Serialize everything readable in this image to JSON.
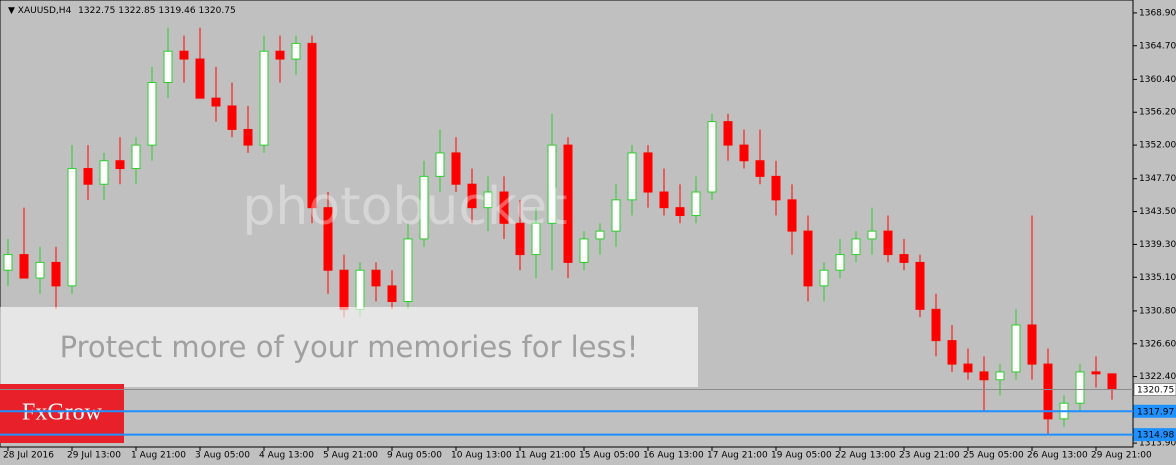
{
  "chart_data": {
    "type": "candlestick",
    "symbol": "XAUUSD,H4",
    "categories": [
      "28 Jul 2016",
      null,
      null,
      null,
      "29 Jul 13:00",
      null,
      null,
      null,
      "1 Aug 21:00",
      null,
      null,
      null,
      "3 Aug 05:00",
      null,
      null,
      null,
      "4 Aug 13:00",
      null,
      null,
      null,
      "5 Aug 21:00",
      null,
      null,
      null,
      "9 Aug 05:00",
      null,
      null,
      null,
      "10 Aug 13:00",
      null,
      null,
      null,
      "11 Aug 21:00",
      null,
      null,
      null,
      "15 Aug 05:00",
      null,
      null,
      null,
      "16 Aug 13:00",
      null,
      null,
      null,
      "17 Aug 21:00",
      null,
      null,
      null,
      "19 Aug 05:00",
      null,
      null,
      null,
      "22 Aug 13:00",
      null,
      null,
      null,
      "23 Aug 21:00",
      null,
      null,
      null,
      "25 Aug 05:00",
      null,
      null,
      null,
      "26 Aug 13:00",
      null,
      null,
      null,
      "29 Aug 21:00",
      null
    ],
    "open": [
      1336,
      1338,
      1335,
      1337,
      1334,
      1349,
      1347,
      1350,
      1349,
      1352,
      1360,
      1364,
      1363,
      1358,
      1357,
      1354,
      1352,
      1364,
      1363,
      1365,
      1344,
      1336,
      1331,
      1336,
      1334,
      1332,
      1340,
      1348,
      1351,
      1347,
      1344,
      1346,
      1342,
      1338,
      1342,
      1352,
      1337,
      1340,
      1341,
      1345,
      1351,
      1346,
      1344,
      1343,
      1346,
      1355,
      1352,
      1350,
      1348,
      1345,
      1341,
      1334,
      1336,
      1338,
      1340,
      1341,
      1338,
      1337,
      1331,
      1327,
      1324,
      1323,
      1322,
      1323,
      1329,
      1324,
      1317,
      1319,
      1323,
      1322.75
    ],
    "high": [
      1340,
      1344,
      1339,
      1339,
      1352,
      1352,
      1351,
      1353,
      1353,
      1362,
      1367,
      1366,
      1367,
      1362,
      1360,
      1357,
      1366,
      1366,
      1366,
      1366,
      1346,
      1338,
      1337,
      1337,
      1336,
      1342,
      1350,
      1354,
      1353,
      1349,
      1348,
      1348,
      1345,
      1344,
      1356,
      1353,
      1341,
      1342,
      1347,
      1352,
      1352,
      1349,
      1347,
      1348,
      1356,
      1356,
      1354,
      1354,
      1350,
      1347,
      1343,
      1337,
      1340,
      1341,
      1344,
      1343,
      1340,
      1338,
      1333,
      1329,
      1326,
      1325,
      1324,
      1331,
      1343,
      1326,
      1320,
      1324,
      1325,
      1322.85
    ],
    "low": [
      1334,
      1335,
      1333,
      1331,
      1333,
      1345,
      1345,
      1347,
      1347,
      1350,
      1358,
      1360,
      1358,
      1355,
      1353,
      1351,
      1351,
      1360,
      1361,
      1342,
      1333,
      1330,
      1330,
      1332,
      1331,
      1331,
      1339,
      1346,
      1346,
      1342,
      1341,
      1340,
      1336,
      1335,
      1336,
      1335,
      1336,
      1338,
      1339,
      1343,
      1344,
      1343,
      1342,
      1342,
      1345,
      1350,
      1349,
      1347,
      1343,
      1338,
      1332,
      1332,
      1335,
      1337,
      1338,
      1337,
      1336,
      1330,
      1325,
      1323,
      1322,
      1318,
      1320,
      1322,
      1322,
      1315,
      1316,
      1318,
      1321,
      1319.46
    ],
    "close": [
      1338,
      1335,
      1337,
      1334,
      1349,
      1347,
      1350,
      1349,
      1352,
      1360,
      1364,
      1363,
      1358,
      1357,
      1354,
      1352,
      1364,
      1363,
      1365,
      1344,
      1336,
      1331,
      1336,
      1334,
      1332,
      1340,
      1348,
      1351,
      1347,
      1344,
      1346,
      1342,
      1338,
      1342,
      1352,
      1337,
      1340,
      1341,
      1345,
      1351,
      1346,
      1344,
      1343,
      1346,
      1355,
      1352,
      1350,
      1348,
      1345,
      1341,
      1334,
      1336,
      1338,
      1340,
      1341,
      1338,
      1337,
      1331,
      1327,
      1324,
      1323,
      1322,
      1323,
      1329,
      1324,
      1317,
      1319,
      1323,
      1322.75,
      1320.75
    ],
    "up_color": "#ffffff",
    "up_outline": "#2ecc2e",
    "down_color": "#ff0000",
    "ylim": [
      1313.4,
      1370.55
    ],
    "yticks": [
      {
        "value": 1368.9,
        "label": "1368.90"
      },
      {
        "value": 1364.7,
        "label": "1364.70"
      },
      {
        "value": 1360.4,
        "label": "1360.40"
      },
      {
        "value": 1356.2,
        "label": "1356.20"
      },
      {
        "value": 1352.0,
        "label": "1352.00"
      },
      {
        "value": 1347.7,
        "label": "1347.70"
      },
      {
        "value": 1343.5,
        "label": "1343.50"
      },
      {
        "value": 1339.3,
        "label": "1339.30"
      },
      {
        "value": 1335.1,
        "label": "1335.10"
      },
      {
        "value": 1330.8,
        "label": "1330.80"
      },
      {
        "value": 1326.6,
        "label": "1326.60"
      },
      {
        "value": 1322.4,
        "label": "1322.40"
      },
      {
        "value": 1313.9,
        "label": "1313.90"
      }
    ],
    "hlines": [
      {
        "value": 1320.75,
        "color": "#8c8c8c"
      },
      {
        "value": 1317.97,
        "color": "#1e90ff"
      },
      {
        "value": 1314.98,
        "color": "#1e90ff"
      }
    ],
    "watermark": "photobucket",
    "banner": "Protect more of your memories for less!",
    "logo": "FxGrow"
  }
}
